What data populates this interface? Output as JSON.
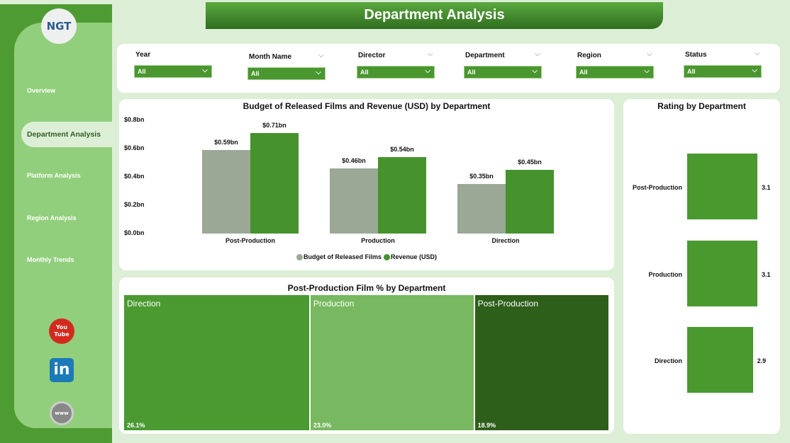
{
  "logo": "NGT",
  "title": "Department Analysis",
  "nav": [
    {
      "label": "Overview"
    },
    {
      "label": "Department Analysis",
      "active": true
    },
    {
      "label": "Platform Analysis"
    },
    {
      "label": "Region Analysis"
    },
    {
      "label": "Monthly Trends"
    }
  ],
  "social": [
    {
      "icon": "youtube-icon",
      "label": "You Tube"
    },
    {
      "icon": "linkedin-icon",
      "label": "in"
    },
    {
      "icon": "website-icon",
      "label": "www"
    }
  ],
  "filters": [
    {
      "label": "Year",
      "value": "All"
    },
    {
      "label": "Month Name",
      "value": "All"
    },
    {
      "label": "Director",
      "value": "All"
    },
    {
      "label": "Department",
      "value": "All"
    },
    {
      "label": "Region",
      "value": "All"
    },
    {
      "label": "Status",
      "value": "All"
    }
  ],
  "colors": {
    "budget": "#9aa895",
    "revenue": "#46922d",
    "rating": "#4a992f",
    "tm_direction": "#4a9a31",
    "tm_production": "#78b860",
    "tm_postproduction": "#2d5e1a"
  },
  "chart_data": [
    {
      "type": "bar",
      "title": "Budget of Released Films and Revenue (USD) by Department",
      "categories": [
        "Post-Production",
        "Production",
        "Direction"
      ],
      "series": [
        {
          "name": "Budget of Released Films",
          "values": [
            0.59,
            0.46,
            0.35
          ],
          "labels": [
            "$0.59bn",
            "$0.46bn",
            "$0.35bn"
          ]
        },
        {
          "name": "Revenue (USD)",
          "values": [
            0.71,
            0.54,
            0.45
          ],
          "labels": [
            "$0.71bn",
            "$0.54bn",
            "$0.45bn"
          ]
        }
      ],
      "yticks": [
        "$0.0bn",
        "$0.2bn",
        "$0.4bn",
        "$0.6bn",
        "$0.8bn"
      ],
      "ylim": [
        0,
        0.8
      ],
      "legend": "bottom"
    },
    {
      "type": "bar",
      "orientation": "horizontal",
      "title": "Rating by Department",
      "categories": [
        "Post-Production",
        "Production",
        "Direction"
      ],
      "values": [
        3.1,
        3.1,
        2.9
      ],
      "labels": [
        "3.1",
        "3.1",
        "2.9"
      ]
    },
    {
      "type": "treemap",
      "title": "Post-Production Film % by Department",
      "categories": [
        "Direction",
        "Production",
        "Post-Production"
      ],
      "values": [
        26.1,
        23.0,
        18.9
      ],
      "labels": [
        "26.1%",
        "23.0%",
        "18.9%"
      ]
    }
  ]
}
